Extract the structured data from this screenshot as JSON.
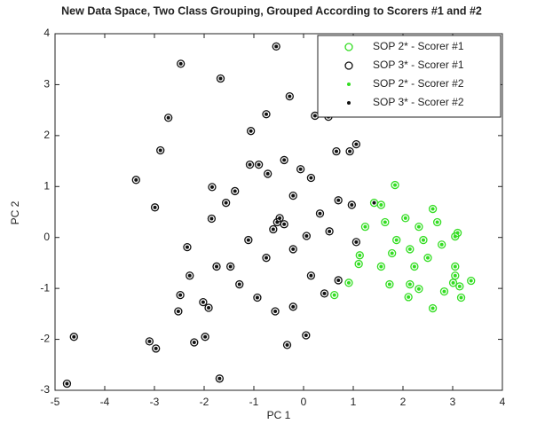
{
  "chart_data": {
    "type": "scatter",
    "title": "New Data Space, Two Class Grouping, Grouped According to Scorers #1 and #2",
    "xlabel": "PC 1",
    "ylabel": "PC 2",
    "xlim": [
      -5,
      4
    ],
    "ylim": [
      -3,
      4
    ],
    "xticks": [
      -5,
      -4,
      -3,
      -2,
      -1,
      0,
      1,
      2,
      3,
      4
    ],
    "yticks": [
      -3,
      -2,
      -1,
      0,
      1,
      2,
      3,
      4
    ],
    "legend": "upper right",
    "series": [
      {
        "name": "SOP 2* - Scorer #1",
        "color": "#33dd22",
        "marker": "circle",
        "x": [
          1.84,
          1.42,
          1.56,
          1.64,
          2.05,
          2.32,
          2.6,
          3.1,
          3.05,
          1.13,
          1.11,
          0.62,
          0.91,
          1.24,
          1.56,
          1.78,
          1.87,
          2.14,
          2.23,
          2.5,
          2.78,
          1.73,
          2.14,
          2.11,
          2.32,
          2.6,
          2.83,
          3.05,
          3.01,
          3.14,
          3.17,
          3.37,
          3.05,
          2.69,
          2.41
        ],
        "y": [
          1.03,
          0.68,
          0.64,
          0.3,
          0.38,
          0.21,
          0.56,
          0.09,
          0.02,
          -0.35,
          -0.52,
          -1.13,
          -0.89,
          0.21,
          -0.57,
          -0.31,
          -0.05,
          -0.23,
          -0.57,
          -0.4,
          -0.14,
          -0.92,
          -0.92,
          -1.17,
          -1.01,
          -1.39,
          -1.06,
          -0.57,
          -0.89,
          -0.96,
          -1.18,
          -0.85,
          -0.75,
          0.3,
          -0.05
        ]
      },
      {
        "name": "SOP 3* - Scorer #1",
        "color": "#111111",
        "marker": "circle",
        "x": [
          -4.76,
          -4.62,
          -3.37,
          -2.99,
          -2.88,
          -2.72,
          -2.47,
          -1.67,
          -0.55,
          -0.28,
          -3.1,
          -2.97,
          -2.2,
          -1.98,
          -1.69,
          -0.33,
          0.05,
          -2.52,
          -2.48,
          -2.34,
          -1.85,
          -1.84,
          -1.56,
          -1.08,
          -0.9,
          -0.75,
          -1.06,
          -0.39,
          0.23,
          0.5,
          0.86,
          0.66,
          0.93,
          1.06,
          -0.53,
          -0.48,
          -0.39,
          -0.61,
          -0.21,
          0.15,
          0.33,
          0.52,
          0.7,
          0.97,
          -1.47,
          -1.29,
          -0.93,
          -0.57,
          -0.21,
          0.15,
          0.42,
          -2.02,
          -1.75,
          -1.11,
          -0.75,
          -0.21,
          -1.91,
          0.7,
          -2.29,
          -1.38,
          0.06,
          -0.72,
          -0.06,
          1.06
        ],
        "y": [
          -2.87,
          -1.95,
          1.13,
          0.59,
          1.71,
          2.35,
          3.41,
          3.12,
          3.75,
          2.77,
          -2.04,
          -2.18,
          -2.06,
          -1.95,
          -2.77,
          -2.11,
          -1.92,
          -1.45,
          -1.13,
          -0.19,
          0.37,
          0.99,
          0.68,
          1.43,
          1.43,
          2.42,
          2.09,
          1.52,
          2.39,
          2.37,
          2.98,
          1.69,
          1.69,
          1.83,
          0.3,
          0.38,
          0.26,
          0.16,
          0.82,
          1.17,
          0.47,
          0.12,
          0.73,
          0.64,
          -0.57,
          -0.92,
          -1.18,
          -1.45,
          -1.36,
          -0.75,
          -1.1,
          -1.27,
          -0.57,
          -0.05,
          -0.4,
          -0.23,
          -1.38,
          -0.84,
          -0.75,
          0.91,
          0.03,
          1.25,
          1.34,
          -0.09
        ]
      },
      {
        "name": "SOP 2* - Scorer #2",
        "color": "#33dd22",
        "marker": "dot",
        "x": [
          1.84,
          1.56,
          1.64,
          2.05,
          2.32,
          2.6,
          3.1,
          3.05,
          1.13,
          1.11,
          0.62,
          0.91,
          1.24,
          1.56,
          1.78,
          1.87,
          2.14,
          2.23,
          2.5,
          2.78,
          1.73,
          2.14,
          2.11,
          2.32,
          2.6,
          2.83,
          3.05,
          3.01,
          3.14,
          3.17,
          3.37,
          3.05,
          2.69,
          2.41
        ],
        "y": [
          1.03,
          0.64,
          0.3,
          0.38,
          0.21,
          0.56,
          0.09,
          0.02,
          -0.35,
          -0.52,
          -1.13,
          -0.89,
          0.21,
          -0.57,
          -0.31,
          -0.05,
          -0.23,
          -0.57,
          -0.4,
          -0.14,
          -0.92,
          -0.92,
          -1.17,
          -1.01,
          -1.39,
          -1.06,
          -0.57,
          -0.89,
          -0.96,
          -1.18,
          -0.85,
          -0.75,
          0.3,
          -0.05
        ]
      },
      {
        "name": "SOP 3* - Scorer #2",
        "color": "#111111",
        "marker": "dot",
        "x": [
          -4.76,
          -4.62,
          -3.37,
          -2.99,
          -2.88,
          -2.72,
          -2.47,
          -1.67,
          -0.55,
          -0.28,
          -3.1,
          -2.97,
          -2.2,
          -1.98,
          -1.69,
          -0.33,
          0.05,
          -2.52,
          -2.48,
          -2.34,
          -1.85,
          -1.84,
          -1.56,
          -1.08,
          -0.9,
          -0.75,
          -1.06,
          -0.39,
          0.23,
          0.5,
          0.86,
          0.66,
          0.93,
          1.06,
          -0.53,
          -0.48,
          -0.39,
          -0.61,
          -0.21,
          0.15,
          0.33,
          0.52,
          0.7,
          0.97,
          -1.47,
          -1.29,
          -0.93,
          -0.57,
          -0.21,
          0.15,
          0.42,
          -2.02,
          -1.75,
          -1.11,
          -0.75,
          -0.21,
          -1.91,
          0.7,
          -2.29,
          -1.38,
          0.06,
          -0.72,
          -0.06,
          1.06,
          1.42
        ],
        "y": [
          -2.87,
          -1.95,
          1.13,
          0.59,
          1.71,
          2.35,
          3.41,
          3.12,
          3.75,
          2.77,
          -2.04,
          -2.18,
          -2.06,
          -1.95,
          -2.77,
          -2.11,
          -1.92,
          -1.45,
          -1.13,
          -0.19,
          0.37,
          0.99,
          0.68,
          1.43,
          1.43,
          2.42,
          2.09,
          1.52,
          2.39,
          2.37,
          2.98,
          1.69,
          1.69,
          1.83,
          0.3,
          0.38,
          0.26,
          0.16,
          0.82,
          1.17,
          0.47,
          0.12,
          0.73,
          0.64,
          -0.57,
          -0.92,
          -1.18,
          -1.45,
          -1.36,
          -0.75,
          -1.1,
          -1.27,
          -0.57,
          -0.05,
          -0.4,
          -0.23,
          -1.38,
          -0.84,
          -0.75,
          0.91,
          0.03,
          1.25,
          1.34,
          -0.09,
          0.68
        ]
      }
    ]
  }
}
